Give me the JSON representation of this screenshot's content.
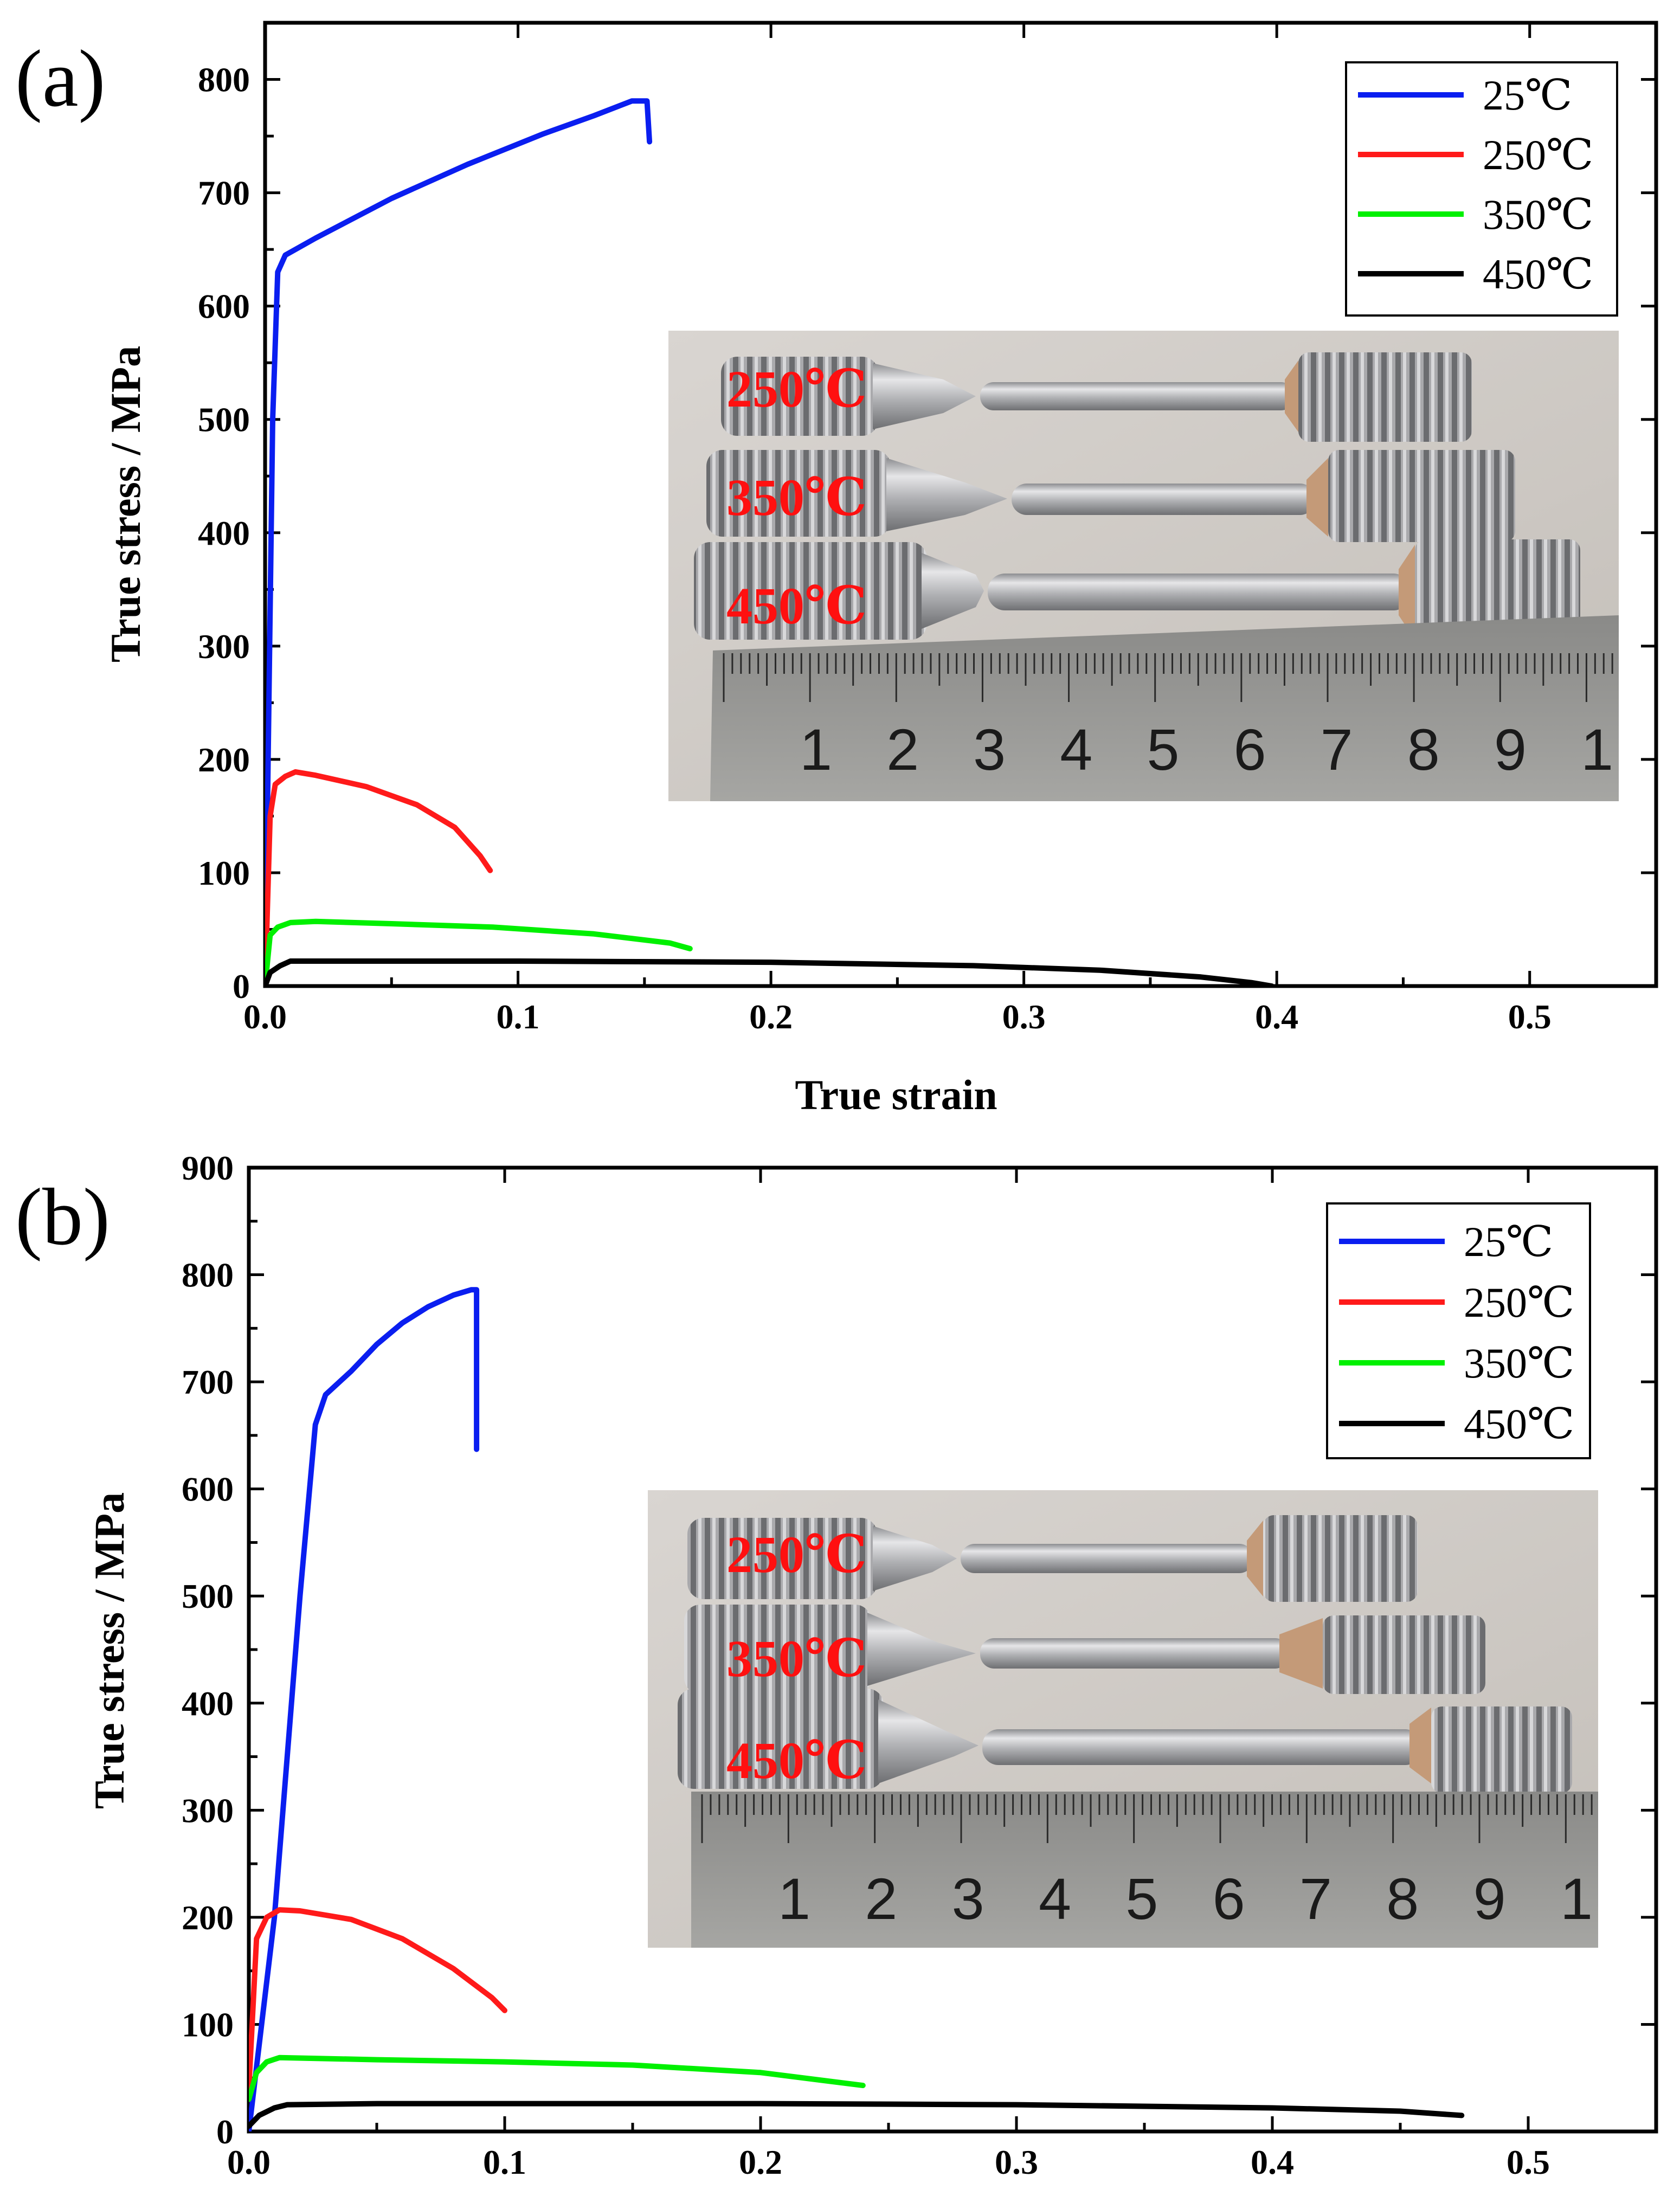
{
  "chart_data": [
    {
      "type": "line",
      "panel_label": "(a)",
      "xlabel": "True strain",
      "ylabel": "True stress / MPa",
      "xlim": [
        0,
        0.55
      ],
      "ylim": [
        0,
        850
      ],
      "xticks": [
        0.0,
        0.1,
        0.2,
        0.3,
        0.4,
        0.5
      ],
      "xtick_labels": [
        "0.0",
        "0.1",
        "0.2",
        "0.3",
        "0.4",
        "0.5"
      ],
      "yticks": [
        0,
        100,
        200,
        300,
        400,
        500,
        600,
        700,
        800
      ],
      "ytick_labels": [
        "0",
        "100",
        "200",
        "300",
        "400",
        "500",
        "600",
        "700",
        "800"
      ],
      "legend_position": "top-right",
      "series": [
        {
          "name": "25℃",
          "color": "#0a1ef0",
          "points": [
            [
              0,
              0
            ],
            [
              0.003,
              500
            ],
            [
              0.005,
              630
            ],
            [
              0.008,
              645
            ],
            [
              0.02,
              660
            ],
            [
              0.05,
              695
            ],
            [
              0.08,
              725
            ],
            [
              0.11,
              752
            ],
            [
              0.13,
              768
            ],
            [
              0.145,
              781
            ],
            [
              0.151,
              781
            ],
            [
              0.152,
              745
            ]
          ]
        },
        {
          "name": "250℃",
          "color": "#ff1a1a",
          "points": [
            [
              0,
              0
            ],
            [
              0.002,
              150
            ],
            [
              0.004,
              178
            ],
            [
              0.008,
              185
            ],
            [
              0.012,
              189
            ],
            [
              0.02,
              186
            ],
            [
              0.04,
              176
            ],
            [
              0.06,
              160
            ],
            [
              0.075,
              140
            ],
            [
              0.085,
              115
            ],
            [
              0.089,
              102
            ]
          ]
        },
        {
          "name": "350℃",
          "color": "#00f000",
          "points": [
            [
              0,
              0
            ],
            [
              0.002,
              45
            ],
            [
              0.005,
              52
            ],
            [
              0.01,
              56
            ],
            [
              0.02,
              57
            ],
            [
              0.05,
              55
            ],
            [
              0.09,
              52
            ],
            [
              0.13,
              46
            ],
            [
              0.16,
              38
            ],
            [
              0.168,
              33
            ]
          ]
        },
        {
          "name": "450℃",
          "color": "#000000",
          "points": [
            [
              0,
              0
            ],
            [
              0.002,
              12
            ],
            [
              0.006,
              18
            ],
            [
              0.01,
              22
            ],
            [
              0.05,
              22
            ],
            [
              0.1,
              22
            ],
            [
              0.2,
              21
            ],
            [
              0.28,
              18
            ],
            [
              0.33,
              14
            ],
            [
              0.37,
              8
            ],
            [
              0.39,
              3
            ],
            [
              0.398,
              0
            ]
          ]
        }
      ],
      "photo_labels": [
        "250℃",
        "350℃",
        "450℃"
      ],
      "ruler_numbers": [
        "1",
        "2",
        "3",
        "4",
        "5",
        "6",
        "7",
        "8",
        "9",
        "1"
      ]
    },
    {
      "type": "line",
      "panel_label": "(b)",
      "xlabel": "",
      "ylabel": "True stress / MPa",
      "xlim": [
        0,
        0.55
      ],
      "ylim": [
        0,
        900
      ],
      "xticks": [
        0.0,
        0.1,
        0.2,
        0.3,
        0.4,
        0.5
      ],
      "xtick_labels": [
        "0.0",
        "0.1",
        "0.2",
        "0.3",
        "0.4",
        "0.5"
      ],
      "yticks": [
        0,
        100,
        200,
        300,
        400,
        500,
        600,
        700,
        800,
        900
      ],
      "ytick_labels": [
        "0",
        "100",
        "200",
        "300",
        "400",
        "500",
        "600",
        "700",
        "800",
        "900"
      ],
      "legend_position": "top-right",
      "series": [
        {
          "name": "25℃",
          "color": "#0a1ef0",
          "points": [
            [
              0,
              0
            ],
            [
              0.01,
              200
            ],
            [
              0.02,
              500
            ],
            [
              0.026,
              660
            ],
            [
              0.03,
              688
            ],
            [
              0.04,
              710
            ],
            [
              0.05,
              735
            ],
            [
              0.06,
              755
            ],
            [
              0.07,
              770
            ],
            [
              0.08,
              781
            ],
            [
              0.087,
              786
            ],
            [
              0.089,
              786
            ],
            [
              0.089,
              637
            ]
          ]
        },
        {
          "name": "250℃",
          "color": "#ff1a1a",
          "points": [
            [
              0,
              40
            ],
            [
              0.003,
              180
            ],
            [
              0.007,
              200
            ],
            [
              0.012,
              207
            ],
            [
              0.02,
              206
            ],
            [
              0.04,
              198
            ],
            [
              0.06,
              180
            ],
            [
              0.08,
              152
            ],
            [
              0.095,
              125
            ],
            [
              0.1,
              113
            ]
          ]
        },
        {
          "name": "350℃",
          "color": "#00f000",
          "points": [
            [
              0,
              30
            ],
            [
              0.003,
              55
            ],
            [
              0.007,
              65
            ],
            [
              0.012,
              69
            ],
            [
              0.05,
              67
            ],
            [
              0.1,
              65
            ],
            [
              0.15,
              62
            ],
            [
              0.2,
              55
            ],
            [
              0.24,
              43
            ]
          ]
        },
        {
          "name": "450℃",
          "color": "#000000",
          "points": [
            [
              0,
              5
            ],
            [
              0.004,
              15
            ],
            [
              0.01,
              22
            ],
            [
              0.015,
              25
            ],
            [
              0.05,
              26
            ],
            [
              0.1,
              26
            ],
            [
              0.2,
              26
            ],
            [
              0.3,
              25
            ],
            [
              0.4,
              22
            ],
            [
              0.45,
              19
            ],
            [
              0.474,
              15
            ]
          ]
        }
      ],
      "photo_labels": [
        "250℃",
        "350℃",
        "450℃"
      ],
      "ruler_numbers": [
        "1",
        "2",
        "3",
        "4",
        "5",
        "6",
        "7",
        "8",
        "9",
        "1"
      ]
    }
  ]
}
